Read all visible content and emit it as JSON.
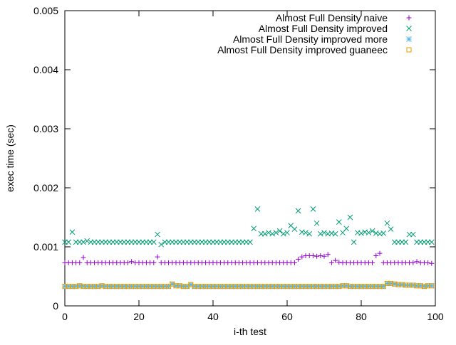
{
  "chart_data": {
    "type": "scatter",
    "title": "",
    "xlabel": "i-th test",
    "ylabel": "exec time (sec)",
    "xlim": [
      0,
      100
    ],
    "ylim": [
      0,
      0.005
    ],
    "xticks": [
      0,
      20,
      40,
      60,
      80,
      100
    ],
    "xtick_labels": [
      "0",
      "20",
      "40",
      "60",
      "80",
      "100"
    ],
    "yticks": [
      0,
      0.001,
      0.002,
      0.003,
      0.004,
      0.005
    ],
    "ytick_labels": [
      "0",
      "0.001",
      "0.002",
      "0.003",
      "0.004",
      "0.005"
    ],
    "grid": false,
    "legend_position": "top-right",
    "x": [
      0,
      1,
      2,
      3,
      4,
      5,
      6,
      7,
      8,
      9,
      10,
      11,
      12,
      13,
      14,
      15,
      16,
      17,
      18,
      19,
      20,
      21,
      22,
      23,
      24,
      25,
      26,
      27,
      28,
      29,
      30,
      31,
      32,
      33,
      34,
      35,
      36,
      37,
      38,
      39,
      40,
      41,
      42,
      43,
      44,
      45,
      46,
      47,
      48,
      49,
      50,
      51,
      52,
      53,
      54,
      55,
      56,
      57,
      58,
      59,
      60,
      61,
      62,
      63,
      64,
      65,
      66,
      67,
      68,
      69,
      70,
      71,
      72,
      73,
      74,
      75,
      76,
      77,
      78,
      79,
      80,
      81,
      82,
      83,
      84,
      85,
      86,
      87,
      88,
      89,
      90,
      91,
      92,
      93,
      94,
      95,
      96,
      97,
      98,
      99
    ],
    "series": [
      {
        "name": "Almost Full Density naive",
        "marker": "plus",
        "color": "#9400d3",
        "values": [
          0.00073,
          0.00073,
          0.00073,
          0.00073,
          0.00073,
          0.00082,
          0.00073,
          0.00073,
          0.00073,
          0.00073,
          0.00073,
          0.00073,
          0.00073,
          0.00073,
          0.00073,
          0.00073,
          0.00073,
          0.00073,
          0.00075,
          0.00073,
          0.00073,
          0.00073,
          0.00073,
          0.00073,
          0.00073,
          0.00083,
          0.00073,
          0.00073,
          0.00073,
          0.00073,
          0.00073,
          0.00073,
          0.00073,
          0.00073,
          0.00073,
          0.00073,
          0.00073,
          0.00073,
          0.00073,
          0.00073,
          0.00073,
          0.00073,
          0.00073,
          0.00073,
          0.00073,
          0.00073,
          0.00073,
          0.00073,
          0.00073,
          0.00073,
          0.00073,
          0.00073,
          0.00073,
          0.00073,
          0.00073,
          0.00073,
          0.00073,
          0.00073,
          0.00073,
          0.00073,
          0.00073,
          0.00073,
          0.00073,
          0.00079,
          0.00083,
          0.00085,
          0.00085,
          0.00085,
          0.00084,
          0.00085,
          0.00084,
          0.00087,
          0.00073,
          0.00077,
          0.00074,
          0.00073,
          0.00073,
          0.00073,
          0.00073,
          0.00073,
          0.00073,
          0.00073,
          0.00073,
          0.00073,
          0.00085,
          0.00089,
          0.00073,
          0.00073,
          0.00073,
          0.00073,
          0.00073,
          0.00073,
          0.00073,
          0.00073,
          0.00073,
          0.00075,
          0.00073,
          0.00073,
          0.00073,
          0.00072
        ]
      },
      {
        "name": "Almost Full Density improved",
        "marker": "cross",
        "color": "#009e73",
        "values": [
          0.00108,
          0.00108,
          0.00125,
          0.00108,
          0.00108,
          0.00108,
          0.0011,
          0.00108,
          0.00108,
          0.00108,
          0.00108,
          0.00108,
          0.00108,
          0.00108,
          0.00108,
          0.00108,
          0.00108,
          0.00108,
          0.00108,
          0.00108,
          0.00108,
          0.00108,
          0.00108,
          0.00108,
          0.00108,
          0.00121,
          0.00104,
          0.00108,
          0.00108,
          0.00108,
          0.00108,
          0.00108,
          0.00108,
          0.00108,
          0.00108,
          0.00108,
          0.00108,
          0.00108,
          0.00108,
          0.00108,
          0.00108,
          0.00108,
          0.00108,
          0.00108,
          0.00108,
          0.00108,
          0.00108,
          0.00108,
          0.00108,
          0.00108,
          0.00108,
          0.00131,
          0.00164,
          0.00122,
          0.00122,
          0.00124,
          0.00122,
          0.00124,
          0.00127,
          0.00122,
          0.00124,
          0.00136,
          0.0013,
          0.00161,
          0.00125,
          0.00124,
          0.00122,
          0.00164,
          0.0014,
          0.00122,
          0.00124,
          0.00122,
          0.00123,
          0.00122,
          0.00142,
          0.00124,
          0.00131,
          0.0015,
          0.00108,
          0.00124,
          0.00123,
          0.00125,
          0.00124,
          0.00127,
          0.00123,
          0.00122,
          0.00123,
          0.0014,
          0.0013,
          0.00108,
          0.00108,
          0.00108,
          0.00108,
          0.00121,
          0.00121,
          0.00108,
          0.00108,
          0.00108,
          0.00108,
          0.00108
        ]
      },
      {
        "name": "Almost Full Density improved more",
        "marker": "star",
        "color": "#56b4e9",
        "values": [
          0.00033,
          0.00033,
          0.00033,
          0.00033,
          0.00034,
          0.00033,
          0.00033,
          0.00033,
          0.00033,
          0.00033,
          0.00034,
          0.00033,
          0.00033,
          0.00033,
          0.00033,
          0.00033,
          0.00033,
          0.00033,
          0.00033,
          0.00033,
          0.00033,
          0.00033,
          0.00033,
          0.00033,
          0.00033,
          0.00033,
          0.00033,
          0.00033,
          0.00033,
          0.00037,
          0.00034,
          0.00034,
          0.00033,
          0.00033,
          0.00036,
          0.00033,
          0.00033,
          0.00033,
          0.00033,
          0.00033,
          0.00033,
          0.00033,
          0.00033,
          0.00033,
          0.00033,
          0.00033,
          0.00033,
          0.00033,
          0.00033,
          0.00033,
          0.00033,
          0.00033,
          0.00033,
          0.00033,
          0.00033,
          0.00033,
          0.00033,
          0.00033,
          0.00033,
          0.00033,
          0.00033,
          0.00033,
          0.00033,
          0.00033,
          0.00033,
          0.00033,
          0.00033,
          0.00033,
          0.00033,
          0.00033,
          0.00033,
          0.00033,
          0.00033,
          0.00033,
          0.00033,
          0.00034,
          0.00034,
          0.00033,
          0.00033,
          0.00033,
          0.00033,
          0.00033,
          0.00033,
          0.00033,
          0.00033,
          0.00033,
          0.00033,
          0.00038,
          0.00038,
          0.00037,
          0.00036,
          0.00036,
          0.00035,
          0.00035,
          0.00035,
          0.00034,
          0.00034,
          0.00033,
          0.00034,
          0.00034
        ]
      },
      {
        "name": "Almost Full Density improved guaneec",
        "marker": "square",
        "color": "#e69f00",
        "values": [
          0.00033,
          0.00033,
          0.00033,
          0.00033,
          0.00034,
          0.00033,
          0.00033,
          0.00033,
          0.00033,
          0.00033,
          0.00034,
          0.00033,
          0.00033,
          0.00033,
          0.00033,
          0.00033,
          0.00033,
          0.00033,
          0.00033,
          0.00033,
          0.00033,
          0.00033,
          0.00033,
          0.00033,
          0.00033,
          0.00033,
          0.00033,
          0.00033,
          0.00033,
          0.00037,
          0.00034,
          0.00034,
          0.00033,
          0.00033,
          0.00036,
          0.00033,
          0.00033,
          0.00033,
          0.00033,
          0.00033,
          0.00033,
          0.00033,
          0.00033,
          0.00033,
          0.00033,
          0.00033,
          0.00033,
          0.00033,
          0.00033,
          0.00033,
          0.00033,
          0.00033,
          0.00033,
          0.00033,
          0.00033,
          0.00033,
          0.00033,
          0.00033,
          0.00033,
          0.00033,
          0.00033,
          0.00033,
          0.00033,
          0.00033,
          0.00033,
          0.00033,
          0.00033,
          0.00033,
          0.00033,
          0.00033,
          0.00033,
          0.00033,
          0.00033,
          0.00033,
          0.00033,
          0.00034,
          0.00034,
          0.00033,
          0.00033,
          0.00033,
          0.00033,
          0.00033,
          0.00033,
          0.00033,
          0.00033,
          0.00033,
          0.00033,
          0.00038,
          0.00038,
          0.00037,
          0.00036,
          0.00036,
          0.00035,
          0.00035,
          0.00035,
          0.00034,
          0.00034,
          0.00033,
          0.00034,
          0.00034
        ]
      }
    ]
  }
}
